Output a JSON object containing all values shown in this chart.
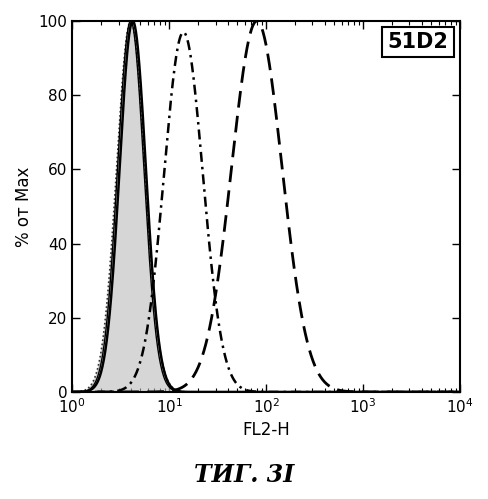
{
  "title_box": "51D2",
  "xlabel": "FL2-H",
  "ylabel": "% от Max",
  "caption": "ΤИГ. 3I",
  "xlim": [
    1,
    10000
  ],
  "ylim": [
    0,
    100
  ],
  "background_color": "#ffffff",
  "curve1": {
    "peak_x": 4.0,
    "peak_y": 100,
    "sigma": 0.145,
    "style": "dotted_filled",
    "color": "#333333",
    "fill_color": "#bbbbbb",
    "linewidth": 1.2
  },
  "curve2": {
    "peak_x": 4.2,
    "peak_y": 100,
    "sigma": 0.135,
    "style": "solid",
    "color": "#000000",
    "linewidth": 1.8
  },
  "curve3": {
    "peak_x": 4.0,
    "peak_y": 100,
    "sigma": 0.135,
    "style": "solid_thin",
    "color": "#000000",
    "linewidth": 1.0
  },
  "curve4": {
    "peak_x": 14,
    "peak_y": 97,
    "sigma": 0.2,
    "style": "densely_dashed",
    "color": "#000000",
    "linewidth": 1.8
  },
  "curve5": {
    "peak_x": 80,
    "peak_y": 100,
    "sigma": 0.26,
    "style": "dashed",
    "color": "#000000",
    "linewidth": 2.0
  }
}
